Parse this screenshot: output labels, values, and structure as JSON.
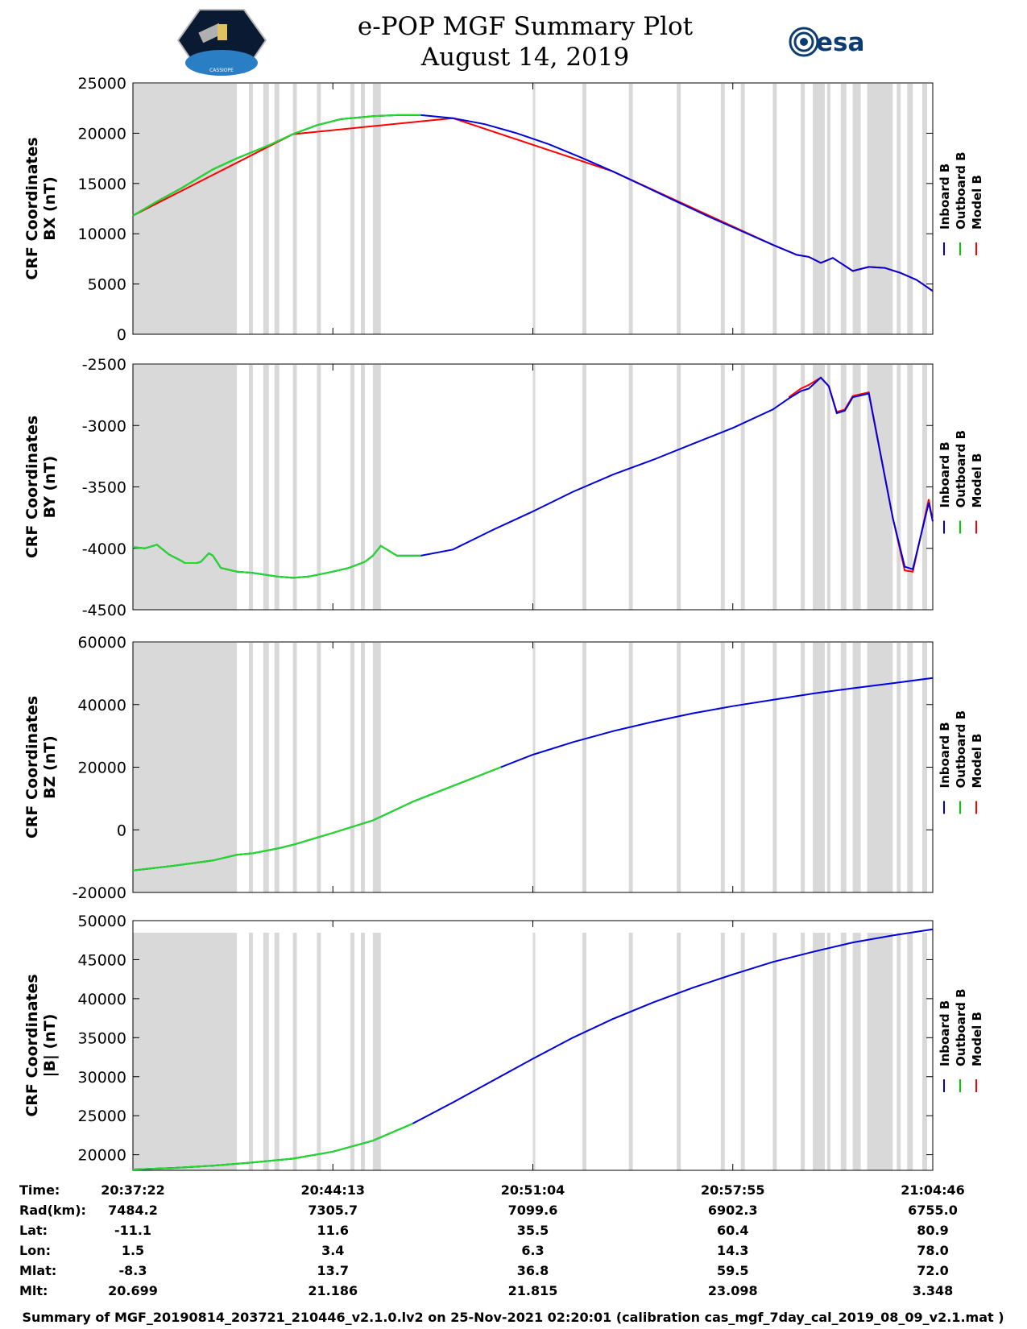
{
  "header": {
    "title_line1": "e-POP MGF Summary Plot",
    "title_line2": "August 14, 2019",
    "left_logo": "cassiope-mission-logo",
    "left_logo_text": "CASSIOPE",
    "right_logo": "esa-logo",
    "right_logo_text": "esa"
  },
  "legend": {
    "entries": [
      "Inboard B",
      "Outboard B",
      "Model B"
    ],
    "colors": [
      "#0000dd",
      "#00cc00",
      "#ff0000"
    ]
  },
  "colors": {
    "inboard": "#0000dd",
    "outboard": "#22dd22",
    "model": "#ff0000",
    "shade": "#d9d9d9"
  },
  "chart_data": [
    {
      "type": "line",
      "ylabel_line1": "CRF Coordinates",
      "ylabel_line2": "BX (nT)",
      "ylim": [
        0,
        25000
      ],
      "yticks": [
        0,
        5000,
        10000,
        15000,
        20000,
        25000
      ],
      "ytick_labels": [
        "0",
        "5000",
        "10000",
        "15000",
        "20000",
        "25000"
      ],
      "xlim": [
        0,
        1644
      ],
      "outboard_end": 0.36,
      "series": [
        {
          "name": "Inboard B",
          "x": [
            0,
            0.03,
            0.06,
            0.1,
            0.13,
            0.17,
            0.2,
            0.23,
            0.26,
            0.3,
            0.33,
            0.36,
            0.4,
            0.44,
            0.48,
            0.52,
            0.56,
            0.6,
            0.64,
            0.68,
            0.72,
            0.76,
            0.8,
            0.83,
            0.845,
            0.86,
            0.875,
            0.9,
            0.92,
            0.94,
            0.96,
            0.98,
            1.0
          ],
          "y": [
            11800,
            13200,
            14500,
            16400,
            17500,
            18800,
            19900,
            20800,
            21400,
            21700,
            21800,
            21800,
            21500,
            20900,
            20000,
            18900,
            17600,
            16200,
            14700,
            13200,
            11700,
            10300,
            8900,
            7900,
            7700,
            7100,
            7600,
            6300,
            6700,
            6600,
            6100,
            5400,
            4300
          ]
        },
        {
          "name": "Outboard B",
          "x": [
            0,
            0.03,
            0.06,
            0.1,
            0.13,
            0.17,
            0.2,
            0.23,
            0.26,
            0.3,
            0.33,
            0.36
          ],
          "y": [
            11800,
            13200,
            14500,
            16400,
            17500,
            18800,
            19900,
            20800,
            21400,
            21700,
            21800,
            21800
          ]
        },
        {
          "name": "Model B",
          "x": [
            0,
            0.2,
            0.4,
            0.6,
            0.8,
            0.83,
            0.845,
            0.86,
            0.875,
            0.9,
            0.92,
            0.94,
            0.96,
            0.98,
            1.0
          ],
          "y": [
            11800,
            19900,
            21500,
            16200,
            8900,
            7900,
            7700,
            7100,
            7600,
            6300,
            6700,
            6600,
            6100,
            5400,
            4300
          ]
        }
      ]
    },
    {
      "type": "line",
      "ylabel_line1": "CRF Coordinates",
      "ylabel_line2": "BY (nT)",
      "ylim": [
        -4500,
        -2500
      ],
      "yticks": [
        -4500,
        -4000,
        -3500,
        -3000,
        -2500
      ],
      "ytick_labels": [
        "-4500",
        "-4000",
        "-3500",
        "-3000",
        "-2500"
      ],
      "xlim": [
        0,
        1644
      ],
      "outboard_end": 0.36,
      "series": [
        {
          "name": "Inboard B",
          "x": [
            0,
            0.015,
            0.03,
            0.045,
            0.06,
            0.065,
            0.08,
            0.085,
            0.095,
            0.1,
            0.11,
            0.13,
            0.15,
            0.18,
            0.2,
            0.22,
            0.25,
            0.27,
            0.29,
            0.3,
            0.31,
            0.33,
            0.36,
            0.4,
            0.45,
            0.5,
            0.55,
            0.6,
            0.65,
            0.7,
            0.75,
            0.8,
            0.82,
            0.835,
            0.845,
            0.86,
            0.87,
            0.88,
            0.89,
            0.9,
            0.92,
            0.95,
            0.965,
            0.975,
            0.985,
            0.995,
            1.0
          ],
          "y": [
            -3990,
            -4000,
            -3970,
            -4050,
            -4100,
            -4120,
            -4120,
            -4110,
            -4040,
            -4060,
            -4160,
            -4190,
            -4200,
            -4230,
            -4240,
            -4230,
            -4190,
            -4160,
            -4110,
            -4060,
            -3980,
            -4060,
            -4060,
            -4010,
            -3850,
            -3700,
            -3540,
            -3400,
            -3280,
            -3150,
            -3020,
            -2870,
            -2780,
            -2720,
            -2700,
            -2610,
            -2680,
            -2900,
            -2880,
            -2770,
            -2740,
            -3750,
            -4150,
            -4170,
            -3900,
            -3630,
            -3780
          ]
        },
        {
          "name": "Outboard B",
          "x": [
            0,
            0.015,
            0.03,
            0.045,
            0.06,
            0.065,
            0.08,
            0.085,
            0.095,
            0.1,
            0.11,
            0.13,
            0.15,
            0.18,
            0.2,
            0.22,
            0.25,
            0.27,
            0.29,
            0.3,
            0.31,
            0.33,
            0.36
          ],
          "y": [
            -3990,
            -4000,
            -3970,
            -4050,
            -4100,
            -4120,
            -4120,
            -4110,
            -4040,
            -4060,
            -4160,
            -4190,
            -4200,
            -4230,
            -4240,
            -4230,
            -4190,
            -4160,
            -4110,
            -4060,
            -3980,
            -4060,
            -4060
          ]
        },
        {
          "name": "Model B",
          "x": [
            0.82,
            0.835,
            0.845,
            0.86,
            0.87,
            0.88,
            0.89,
            0.9,
            0.92,
            0.95,
            0.965,
            0.975,
            0.985,
            0.995,
            1.0
          ],
          "y": [
            -2770,
            -2700,
            -2670,
            -2610,
            -2680,
            -2890,
            -2870,
            -2760,
            -2730,
            -3750,
            -4180,
            -4190,
            -3900,
            -3600,
            -3780
          ]
        }
      ]
    },
    {
      "type": "line",
      "ylabel_line1": "CRF Coordinates",
      "ylabel_line2": "BZ (nT)",
      "ylim": [
        -20000,
        60000
      ],
      "yticks": [
        -20000,
        0,
        20000,
        40000,
        60000
      ],
      "ytick_labels": [
        "-20000",
        "0",
        "20000",
        "40000",
        "60000"
      ],
      "xlim": [
        0,
        1644
      ],
      "outboard_end": 0.46,
      "series": [
        {
          "name": "Inboard B",
          "x": [
            0,
            0.05,
            0.1,
            0.13,
            0.15,
            0.18,
            0.2,
            0.25,
            0.3,
            0.35,
            0.4,
            0.46,
            0.5,
            0.55,
            0.6,
            0.65,
            0.7,
            0.75,
            0.8,
            0.85,
            0.9,
            0.95,
            1.0
          ],
          "y": [
            -13000,
            -11500,
            -9800,
            -8000,
            -7500,
            -6000,
            -4800,
            -1000,
            3000,
            9000,
            14000,
            20000,
            24000,
            28000,
            31500,
            34500,
            37200,
            39500,
            41500,
            43500,
            45200,
            46800,
            48500
          ]
        },
        {
          "name": "Outboard B",
          "x": [
            0,
            0.05,
            0.1,
            0.13,
            0.15,
            0.18,
            0.2,
            0.25,
            0.3,
            0.35,
            0.4,
            0.46
          ],
          "y": [
            -13000,
            -11500,
            -9800,
            -8000,
            -7500,
            -6000,
            -4800,
            -1000,
            3000,
            9000,
            14000,
            20000
          ]
        },
        {
          "name": "Model B",
          "x": [],
          "y": []
        }
      ]
    },
    {
      "type": "line",
      "ylabel_line1": "CRF Coordinates",
      "ylabel_line2": "|B| (nT)",
      "ylim": [
        18000,
        50000
      ],
      "yticks": [
        20000,
        25000,
        30000,
        35000,
        40000,
        45000,
        50000
      ],
      "ytick_labels": [
        "20000",
        "25000",
        "30000",
        "35000",
        "40000",
        "45000",
        "50000"
      ],
      "xlim": [
        0,
        1644
      ],
      "outboard_end": 0.35,
      "series": [
        {
          "name": "Inboard B",
          "x": [
            0,
            0.05,
            0.1,
            0.15,
            0.2,
            0.25,
            0.3,
            0.35,
            0.4,
            0.45,
            0.5,
            0.55,
            0.6,
            0.65,
            0.7,
            0.75,
            0.8,
            0.85,
            0.9,
            0.95,
            1.0
          ],
          "y": [
            18100,
            18300,
            18600,
            19000,
            19500,
            20400,
            21800,
            24000,
            26700,
            29500,
            32300,
            35000,
            37400,
            39500,
            41400,
            43100,
            44700,
            46000,
            47200,
            48100,
            48900
          ]
        },
        {
          "name": "Outboard B",
          "x": [
            0,
            0.05,
            0.1,
            0.15,
            0.2,
            0.25,
            0.3,
            0.35
          ],
          "y": [
            18100,
            18300,
            18600,
            19000,
            19500,
            20400,
            21800,
            24000
          ]
        },
        {
          "name": "Model B",
          "x": [],
          "y": []
        }
      ]
    }
  ],
  "gaps": {
    "frac": [
      [
        0.0,
        0.13
      ],
      [
        0.145,
        0.15
      ],
      [
        0.163,
        0.17
      ],
      [
        0.177,
        0.183
      ],
      [
        0.2,
        0.205
      ],
      [
        0.23,
        0.235
      ],
      [
        0.272,
        0.277
      ],
      [
        0.285,
        0.29
      ],
      [
        0.3,
        0.31
      ],
      [
        0.5,
        0.503
      ],
      [
        0.562,
        0.567
      ],
      [
        0.62,
        0.625
      ],
      [
        0.68,
        0.685
      ],
      [
        0.735,
        0.74
      ],
      [
        0.76,
        0.765
      ],
      [
        0.8,
        0.805
      ],
      [
        0.835,
        0.84
      ],
      [
        0.85,
        0.865
      ],
      [
        0.868,
        0.872
      ],
      [
        0.885,
        0.892
      ],
      [
        0.9,
        0.91
      ],
      [
        0.918,
        0.923
      ],
      [
        0.92,
        0.95
      ],
      [
        0.955,
        0.96
      ],
      [
        0.968,
        0.975
      ],
      [
        0.987,
        0.993
      ]
    ]
  },
  "table": {
    "row_labels": [
      "Time:",
      "Rad(km):",
      "Lat:",
      "Lon:",
      "Mlat:",
      "Mlt:"
    ],
    "columns": [
      [
        "20:37:22",
        "7484.2",
        "-11.1",
        "1.5",
        "-8.3",
        "20.699"
      ],
      [
        "20:44:13",
        "7305.7",
        "11.6",
        "3.4",
        "13.7",
        "21.186"
      ],
      [
        "20:51:04",
        "7099.6",
        "35.5",
        "6.3",
        "36.8",
        "21.815"
      ],
      [
        "20:57:55",
        "6902.3",
        "60.4",
        "14.3",
        "59.5",
        "23.098"
      ],
      [
        "21:04:46",
        "6755.0",
        "80.9",
        "78.0",
        "72.0",
        "3.348"
      ]
    ]
  },
  "footer": "Summary of MGF_20190814_203721_210446_v2.1.0.lv2 on 25-Nov-2021 02:20:01 (calibration cas_mgf_7day_cal_2019_08_09_v2.1.mat )"
}
